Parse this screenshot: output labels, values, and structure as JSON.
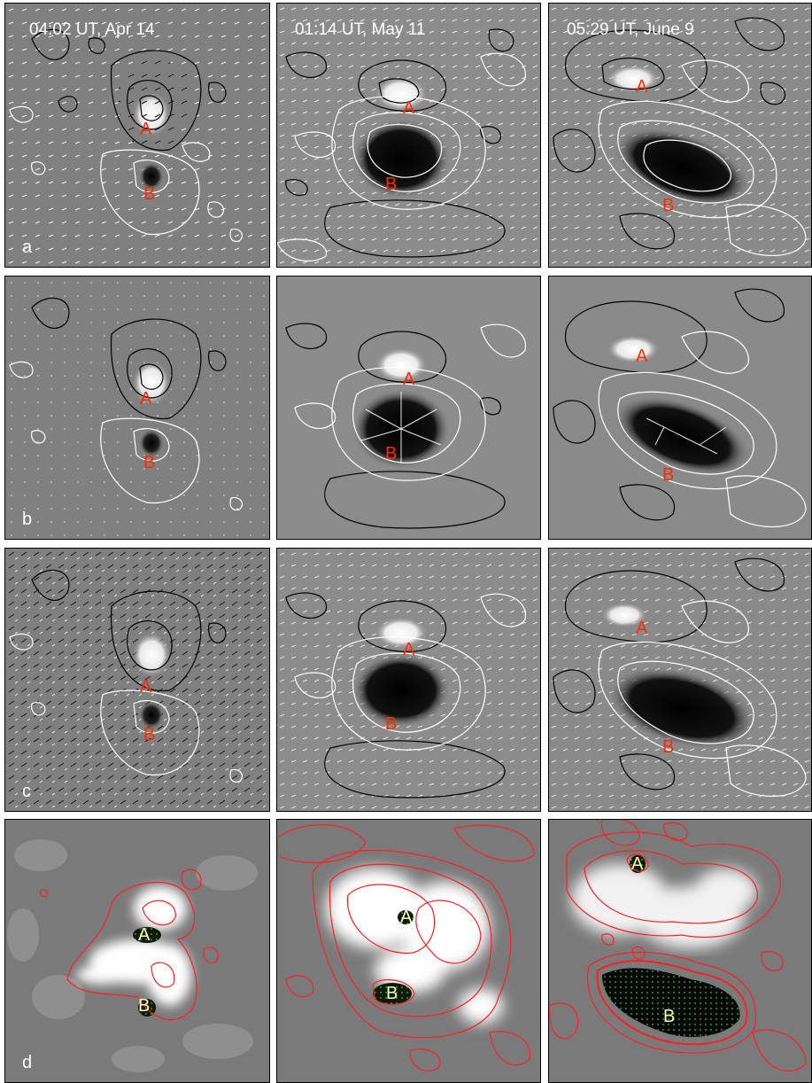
{
  "columns": [
    {
      "time": "04:02 UT, Apr 14"
    },
    {
      "time": "01:14 UT, May 11"
    },
    {
      "time": "05:29 UT, June 9"
    }
  ],
  "rows": [
    {
      "label": "a"
    },
    {
      "label": "b"
    },
    {
      "label": "c"
    },
    {
      "label": "d"
    }
  ],
  "poles": {
    "a": "A",
    "b": "B"
  },
  "colors": {
    "background_gray": "#808080",
    "positive_contour": "#ffffff",
    "negative_contour": "#000000",
    "row_d_contour": "#ff2020",
    "label_red": "#ff2a00",
    "label_yellow": "#fffbb0",
    "dot_green": "#3fbf3f"
  }
}
